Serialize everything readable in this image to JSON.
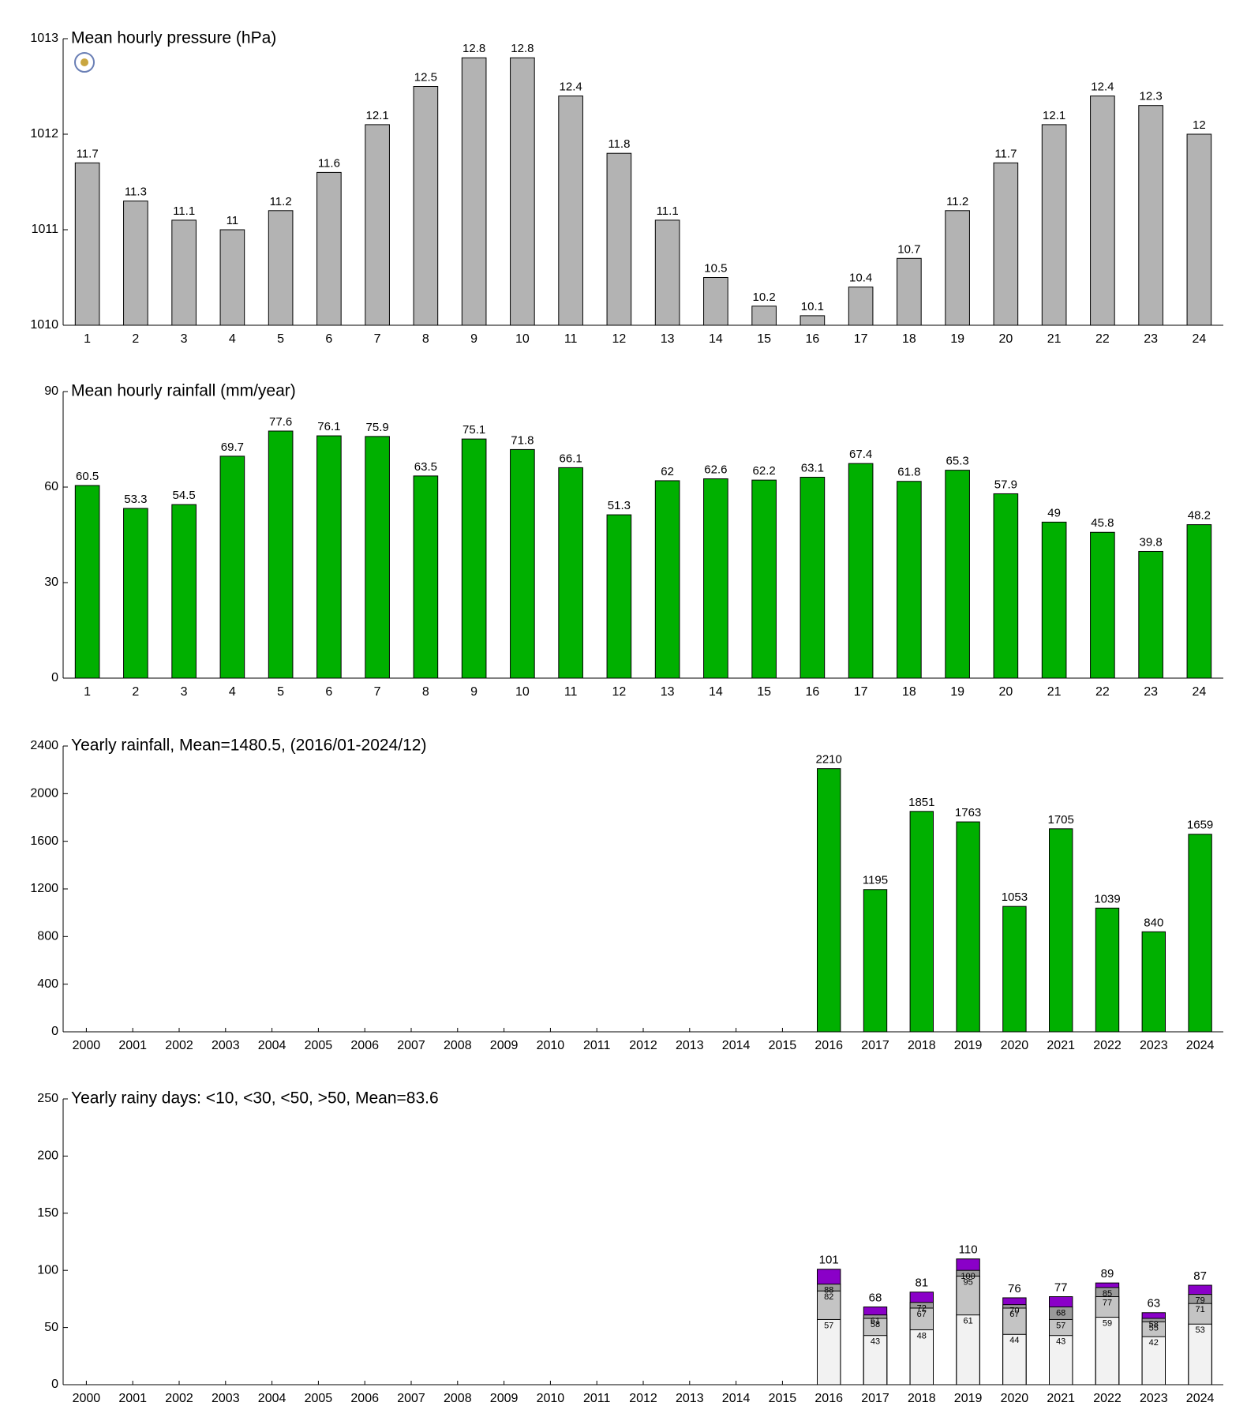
{
  "chart_data": [
    {
      "type": "bar",
      "title": "Mean hourly pressure (hPa)",
      "categories": [
        "1",
        "2",
        "3",
        "4",
        "5",
        "6",
        "7",
        "8",
        "9",
        "10",
        "11",
        "12",
        "13",
        "14",
        "15",
        "16",
        "17",
        "18",
        "19",
        "20",
        "21",
        "22",
        "23",
        "24"
      ],
      "values": [
        1011.7,
        1011.3,
        1011.1,
        1011,
        1011.2,
        1011.6,
        1012.1,
        1012.5,
        1012.8,
        1012.8,
        1012.4,
        1011.8,
        1011.1,
        1010.5,
        1010.2,
        1010.1,
        1010.4,
        1010.7,
        1011.2,
        1011.7,
        1012.1,
        1012.4,
        1012.3,
        1012
      ],
      "value_labels": [
        "11.7",
        "11.3",
        "11.1",
        "11",
        "11.2",
        "11.6",
        "12.1",
        "12.5",
        "12.8",
        "12.8",
        "12.4",
        "11.8",
        "11.1",
        "10.5",
        "10.2",
        "10.1",
        "10.4",
        "10.7",
        "11.2",
        "11.7",
        "12.1",
        "12.4",
        "12.3",
        "12"
      ],
      "color": "#b3b3b3",
      "ylim": [
        1010,
        1013
      ],
      "yticks": [
        1010,
        1011,
        1012,
        1013
      ]
    },
    {
      "type": "bar",
      "title": "Mean hourly rainfall (mm/year)",
      "categories": [
        "1",
        "2",
        "3",
        "4",
        "5",
        "6",
        "7",
        "8",
        "9",
        "10",
        "11",
        "12",
        "13",
        "14",
        "15",
        "16",
        "17",
        "18",
        "19",
        "20",
        "21",
        "22",
        "23",
        "24"
      ],
      "values": [
        60.5,
        53.3,
        54.5,
        69.7,
        77.6,
        76.1,
        75.9,
        63.5,
        75.1,
        71.8,
        66.1,
        51.3,
        62,
        62.6,
        62.2,
        63.1,
        67.4,
        61.8,
        65.3,
        57.9,
        49,
        45.8,
        39.8,
        48.2
      ],
      "color": "#00b000",
      "ylim": [
        0,
        90
      ],
      "yticks": [
        0,
        30,
        60,
        90
      ]
    },
    {
      "type": "bar",
      "title": "Yearly rainfall, Mean=1480.5, (2016/01-2024/12)",
      "categories": [
        "2000",
        "2001",
        "2002",
        "2003",
        "2004",
        "2005",
        "2006",
        "2007",
        "2008",
        "2009",
        "2010",
        "2011",
        "2012",
        "2013",
        "2014",
        "2015",
        "2016",
        "2017",
        "2018",
        "2019",
        "2020",
        "2021",
        "2022",
        "2023",
        "2024"
      ],
      "values": [
        null,
        null,
        null,
        null,
        null,
        null,
        null,
        null,
        null,
        null,
        null,
        null,
        null,
        null,
        null,
        null,
        2210,
        1195,
        1851,
        1763,
        1053,
        1705,
        1039,
        840,
        1659
      ],
      "color": "#00b000",
      "ylim": [
        0,
        2400
      ],
      "yticks": [
        0,
        400,
        800,
        1200,
        1600,
        2000,
        2400
      ]
    },
    {
      "type": "bar",
      "title": "Yearly rainy days: <10, <30, <50, >50, Mean=83.6",
      "categories": [
        "2000",
        "2001",
        "2002",
        "2003",
        "2004",
        "2005",
        "2006",
        "2007",
        "2008",
        "2009",
        "2010",
        "2011",
        "2012",
        "2013",
        "2014",
        "2015",
        "2016",
        "2017",
        "2018",
        "2019",
        "2020",
        "2021",
        "2022",
        "2023",
        "2024"
      ],
      "series": [
        {
          "color": "#f2f2f2",
          "values": [
            null,
            null,
            null,
            null,
            null,
            null,
            null,
            null,
            null,
            null,
            null,
            null,
            null,
            null,
            null,
            null,
            57,
            43,
            48,
            61,
            44,
            43,
            59,
            42,
            53
          ]
        },
        {
          "color": "#c4c4c4",
          "values": [
            null,
            null,
            null,
            null,
            null,
            null,
            null,
            null,
            null,
            null,
            null,
            null,
            null,
            null,
            null,
            null,
            82,
            58,
            67,
            95,
            67,
            57,
            77,
            55,
            71
          ]
        },
        {
          "color": "#9a9a9a",
          "values": [
            null,
            null,
            null,
            null,
            null,
            null,
            null,
            null,
            null,
            null,
            null,
            null,
            null,
            null,
            null,
            null,
            88,
            61,
            72,
            100,
            70,
            68,
            85,
            58,
            79
          ]
        },
        {
          "color": "#8a00c8",
          "values": [
            null,
            null,
            null,
            null,
            null,
            null,
            null,
            null,
            null,
            null,
            null,
            null,
            null,
            null,
            null,
            null,
            101,
            68,
            81,
            110,
            76,
            77,
            89,
            63,
            87
          ]
        }
      ],
      "ylim": [
        0,
        250
      ],
      "yticks": [
        0,
        50,
        100,
        150,
        200,
        250
      ]
    }
  ]
}
